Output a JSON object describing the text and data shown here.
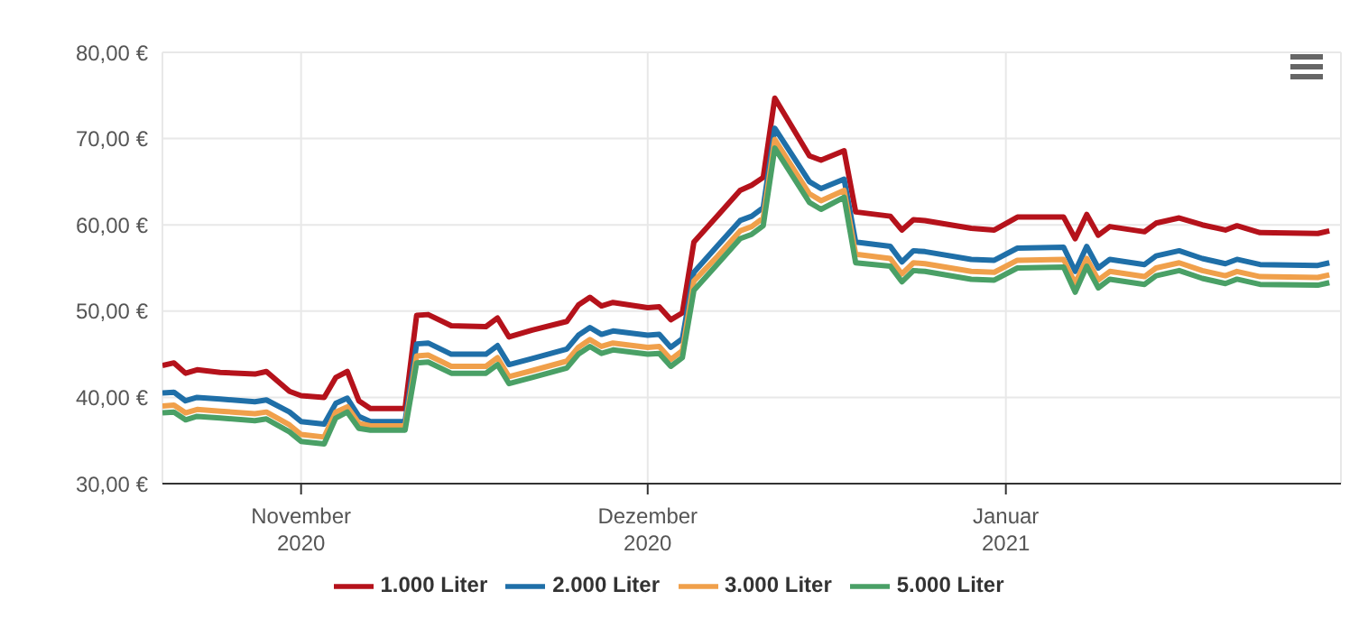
{
  "chart_data": {
    "type": "line",
    "x": [
      "2020-10-20",
      "2020-10-21",
      "2020-10-22",
      "2020-10-23",
      "2020-10-25",
      "2020-10-28",
      "2020-10-29",
      "2020-10-31",
      "2020-11-01",
      "2020-11-03",
      "2020-11-04",
      "2020-11-05",
      "2020-11-06",
      "2020-11-07",
      "2020-11-10",
      "2020-11-11",
      "2020-11-12",
      "2020-11-14",
      "2020-11-17",
      "2020-11-18",
      "2020-11-19",
      "2020-11-21",
      "2020-11-24",
      "2020-11-25",
      "2020-11-26",
      "2020-11-27",
      "2020-11-28",
      "2020-12-01",
      "2020-12-02",
      "2020-12-03",
      "2020-12-04",
      "2020-12-05",
      "2020-12-07",
      "2020-12-09",
      "2020-12-10",
      "2020-12-11",
      "2020-12-12",
      "2020-12-15",
      "2020-12-16",
      "2020-12-18",
      "2020-12-19",
      "2020-12-22",
      "2020-12-23",
      "2020-12-24",
      "2020-12-25",
      "2020-12-29",
      "2020-12-31",
      "2021-01-02",
      "2021-01-06",
      "2021-01-07",
      "2021-01-08",
      "2021-01-09",
      "2021-01-10",
      "2021-01-13",
      "2021-01-14",
      "2021-01-16",
      "2021-01-18",
      "2021-01-20",
      "2021-01-21",
      "2021-01-23",
      "2021-01-28",
      "2021-01-29"
    ],
    "series": [
      {
        "name": "1.000 Liter",
        "color": "#b5121b",
        "values": [
          43.7,
          44.0,
          42.8,
          43.2,
          42.9,
          42.7,
          43.0,
          40.7,
          40.2,
          40.0,
          42.3,
          43.0,
          39.6,
          38.7,
          38.7,
          49.5,
          49.6,
          48.3,
          48.2,
          49.2,
          47.0,
          47.8,
          48.8,
          50.7,
          51.6,
          50.6,
          51.0,
          50.4,
          50.5,
          49.0,
          49.8,
          58.0,
          61.0,
          64.0,
          64.6,
          65.5,
          74.7,
          68.0,
          67.5,
          68.6,
          61.5,
          61.0,
          59.4,
          60.6,
          60.5,
          59.6,
          59.4,
          60.9,
          60.9,
          58.4,
          61.2,
          58.8,
          59.8,
          59.2,
          60.2,
          60.8,
          60.0,
          59.4,
          59.9,
          59.1,
          59.0,
          59.3
        ]
      },
      {
        "name": "2.000 Liter",
        "color": "#1f6fa8",
        "values": [
          40.5,
          40.6,
          39.6,
          40.0,
          39.8,
          39.5,
          39.7,
          38.3,
          37.2,
          36.9,
          39.3,
          39.9,
          37.8,
          37.2,
          37.2,
          46.2,
          46.3,
          45.0,
          45.0,
          46.0,
          43.8,
          44.5,
          45.6,
          47.2,
          48.1,
          47.3,
          47.7,
          47.2,
          47.3,
          45.8,
          46.8,
          54.5,
          57.5,
          60.5,
          61.0,
          62.0,
          71.2,
          65.0,
          64.2,
          65.3,
          58.0,
          57.5,
          55.7,
          57.0,
          56.9,
          56.0,
          55.9,
          57.3,
          57.4,
          54.6,
          57.5,
          55.0,
          56.0,
          55.4,
          56.4,
          57.0,
          56.1,
          55.5,
          56.0,
          55.4,
          55.3,
          55.6
        ]
      },
      {
        "name": "3.000 Liter",
        "color": "#f0a04b",
        "values": [
          39.0,
          39.1,
          38.2,
          38.6,
          38.4,
          38.1,
          38.3,
          36.8,
          35.7,
          35.4,
          38.3,
          38.9,
          37.0,
          36.7,
          36.7,
          44.8,
          44.9,
          43.6,
          43.6,
          44.6,
          42.4,
          43.1,
          44.2,
          45.8,
          46.7,
          45.9,
          46.3,
          45.8,
          45.9,
          44.4,
          45.4,
          53.5,
          56.3,
          59.3,
          59.8,
          60.8,
          69.9,
          63.6,
          62.8,
          64.0,
          56.6,
          56.1,
          54.3,
          55.6,
          55.5,
          54.6,
          54.5,
          55.9,
          56.0,
          53.2,
          56.1,
          53.6,
          54.6,
          54.0,
          55.0,
          55.6,
          54.7,
          54.1,
          54.6,
          54.0,
          53.9,
          54.2
        ]
      },
      {
        "name": "5.000 Liter",
        "color": "#4aa066",
        "values": [
          38.2,
          38.3,
          37.4,
          37.8,
          37.6,
          37.3,
          37.5,
          36.0,
          34.9,
          34.6,
          37.6,
          38.3,
          36.4,
          36.2,
          36.2,
          44.0,
          44.1,
          42.8,
          42.8,
          43.8,
          41.6,
          42.3,
          43.4,
          45.0,
          45.9,
          45.1,
          45.5,
          45.0,
          45.1,
          43.6,
          44.6,
          52.4,
          55.4,
          58.4,
          58.9,
          59.9,
          68.9,
          62.6,
          61.8,
          63.2,
          55.6,
          55.2,
          53.4,
          54.7,
          54.6,
          53.7,
          53.6,
          55.0,
          55.1,
          52.2,
          55.2,
          52.7,
          53.7,
          53.1,
          54.1,
          54.7,
          53.8,
          53.2,
          53.7,
          53.1,
          53.0,
          53.3
        ]
      }
    ],
    "xlim": [
      "2020-10-20",
      "2021-01-30"
    ],
    "xticks": [
      {
        "value": "2020-11-01",
        "label": "November\n2020"
      },
      {
        "value": "2020-12-01",
        "label": "Dezember\n2020"
      },
      {
        "value": "2021-01-01",
        "label": "Januar\n2021"
      }
    ],
    "ylim": [
      30,
      80
    ],
    "yticks": [
      {
        "value": 30,
        "label": "30,00 €"
      },
      {
        "value": 40,
        "label": "40,00 €"
      },
      {
        "value": 50,
        "label": "50,00 €"
      },
      {
        "value": 60,
        "label": "60,00 €"
      },
      {
        "value": 70,
        "label": "70,00 €"
      },
      {
        "value": 80,
        "label": "80,00 €"
      }
    ],
    "grid": true,
    "legend": "bottom",
    "marker": "none",
    "line_style": "solid"
  }
}
